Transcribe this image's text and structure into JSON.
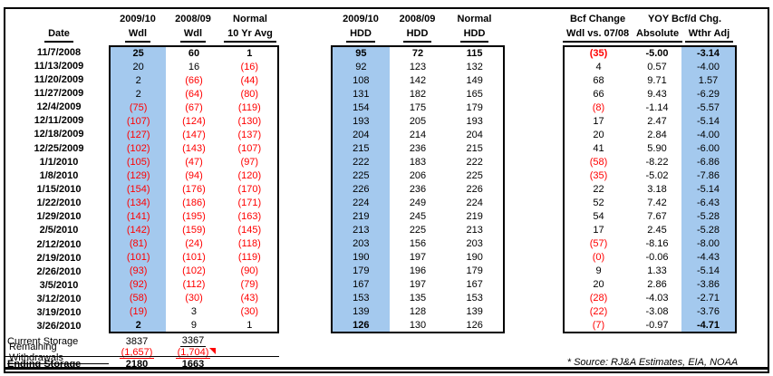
{
  "colors": {
    "highlight": "#A4C9EE",
    "negative": "#FF0000"
  },
  "headers": {
    "date": "Date",
    "left": [
      {
        "l1": "2009/10",
        "l2": "Wdl"
      },
      {
        "l1": "2008/09",
        "l2": "Wdl"
      },
      {
        "l1": "Normal",
        "l2": "10 Yr Avg"
      }
    ],
    "middle": [
      {
        "l1": "2009/10",
        "l2": "HDD"
      },
      {
        "l1": "2008/09",
        "l2": "HDD"
      },
      {
        "l1": "Normal",
        "l2": "HDD"
      }
    ],
    "right": {
      "col1_l1": "Bcf Change",
      "col1_l2": "Wdl vs. 07/08",
      "span": "YOY Bcf/d Chg.",
      "sub1": "Absolute",
      "sub2": "Wthr Adj"
    }
  },
  "dates": [
    "11/7/2008",
    "11/13/2009",
    "11/20/2009",
    "11/27/2009",
    "12/4/2009",
    "12/11/2009",
    "12/18/2009",
    "12/25/2009",
    "1/1/2010",
    "1/8/2010",
    "1/15/2010",
    "1/22/2010",
    "1/29/2010",
    "2/5/2010",
    "2/12/2010",
    "2/19/2010",
    "2/26/2010",
    "3/5/2010",
    "3/12/2010",
    "3/19/2010",
    "3/26/2010"
  ],
  "tables": {
    "left": {
      "rows": [
        [
          "25",
          "60",
          "1"
        ],
        [
          "20",
          "16",
          "(16)"
        ],
        [
          "2",
          "(66)",
          "(44)"
        ],
        [
          "2",
          "(64)",
          "(80)"
        ],
        [
          "(75)",
          "(67)",
          "(119)"
        ],
        [
          "(107)",
          "(124)",
          "(130)"
        ],
        [
          "(127)",
          "(147)",
          "(137)"
        ],
        [
          "(102)",
          "(143)",
          "(107)"
        ],
        [
          "(105)",
          "(47)",
          "(97)"
        ],
        [
          "(129)",
          "(94)",
          "(120)"
        ],
        [
          "(154)",
          "(176)",
          "(170)"
        ],
        [
          "(134)",
          "(186)",
          "(171)"
        ],
        [
          "(141)",
          "(195)",
          "(163)"
        ],
        [
          "(142)",
          "(159)",
          "(145)"
        ],
        [
          "(81)",
          "(24)",
          "(118)"
        ],
        [
          "(101)",
          "(101)",
          "(119)"
        ],
        [
          "(93)",
          "(102)",
          "(90)"
        ],
        [
          "(92)",
          "(112)",
          "(79)"
        ],
        [
          "(58)",
          "(30)",
          "(43)"
        ],
        [
          "(19)",
          "3",
          "(30)"
        ],
        [
          "2",
          "9",
          "1"
        ]
      ]
    },
    "middle": {
      "rows": [
        [
          "95",
          "72",
          "115"
        ],
        [
          "92",
          "123",
          "132"
        ],
        [
          "108",
          "142",
          "149"
        ],
        [
          "131",
          "182",
          "165"
        ],
        [
          "154",
          "175",
          "179"
        ],
        [
          "193",
          "205",
          "193"
        ],
        [
          "204",
          "214",
          "204"
        ],
        [
          "215",
          "236",
          "215"
        ],
        [
          "222",
          "183",
          "222"
        ],
        [
          "225",
          "206",
          "225"
        ],
        [
          "226",
          "236",
          "226"
        ],
        [
          "224",
          "249",
          "224"
        ],
        [
          "219",
          "245",
          "219"
        ],
        [
          "213",
          "225",
          "213"
        ],
        [
          "203",
          "156",
          "203"
        ],
        [
          "190",
          "197",
          "190"
        ],
        [
          "179",
          "196",
          "179"
        ],
        [
          "167",
          "197",
          "167"
        ],
        [
          "153",
          "135",
          "153"
        ],
        [
          "139",
          "128",
          "139"
        ],
        [
          "126",
          "130",
          "126"
        ]
      ]
    },
    "right": {
      "rows": [
        [
          "(35)",
          "-5.00",
          "-3.14"
        ],
        [
          "4",
          "0.57",
          "-4.00"
        ],
        [
          "68",
          "9.71",
          "1.57"
        ],
        [
          "66",
          "9.43",
          "-6.29"
        ],
        [
          "(8)",
          "-1.14",
          "-5.57"
        ],
        [
          "17",
          "2.47",
          "-5.14"
        ],
        [
          "20",
          "2.84",
          "-4.00"
        ],
        [
          "41",
          "5.90",
          "-6.00"
        ],
        [
          "(58)",
          "-8.22",
          "-6.86"
        ],
        [
          "(35)",
          "-5.02",
          "-7.86"
        ],
        [
          "22",
          "3.18",
          "-5.14"
        ],
        [
          "52",
          "7.42",
          "-6.43"
        ],
        [
          "54",
          "7.67",
          "-5.28"
        ],
        [
          "17",
          "2.45",
          "-5.28"
        ],
        [
          "(57)",
          "-8.16",
          "-8.00"
        ],
        [
          "(0)",
          "-0.06",
          "-4.43"
        ],
        [
          "9",
          "1.33",
          "-5.14"
        ],
        [
          "20",
          "2.86",
          "-3.86"
        ],
        [
          "(28)",
          "-4.03",
          "-2.71"
        ],
        [
          "(22)",
          "-3.08",
          "-3.76"
        ],
        [
          "(7)",
          "-0.97",
          "-4.71"
        ]
      ]
    }
  },
  "footer": {
    "current_storage": {
      "label": "Current Storage",
      "v1": "3837",
      "v2": "3367"
    },
    "remaining": {
      "label": "Remaining Withdrawals",
      "v1": "(1,657)",
      "v2": "(1,704)"
    },
    "ending": {
      "label": "Ending Storage",
      "v1": "2180",
      "v2": "1663"
    }
  },
  "footnote": "* Source: RJ&A Estimates, EIA, NOAA"
}
